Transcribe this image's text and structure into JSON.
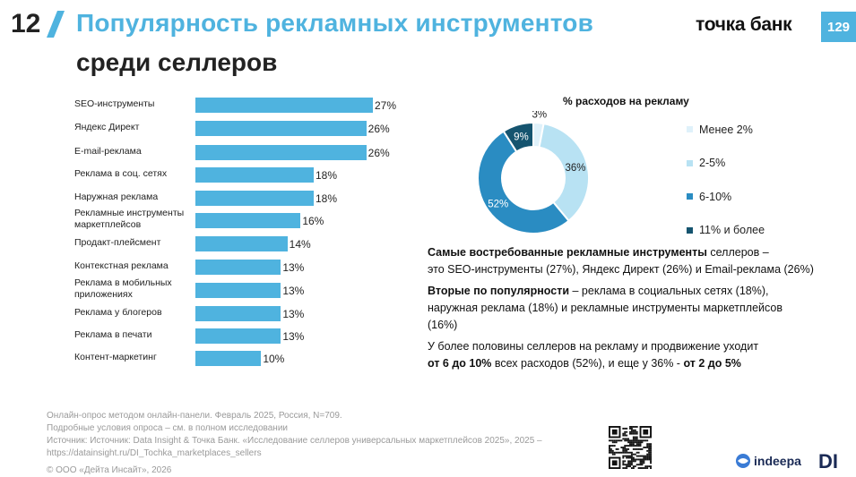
{
  "header": {
    "slide_number": "12",
    "title_line1": "Популярность рекламных инструментов",
    "title_line2": "среди селлеров",
    "brand": "точка банк",
    "page_number": "129"
  },
  "chart_data": [
    {
      "type": "bar",
      "orientation": "horizontal",
      "categories": [
        "SEO-инструменты",
        "Яндекс Директ",
        "E-mail-реклама",
        "Реклама в соц. сетях",
        "Наружная реклама",
        "Рекламные инструменты маркетплейсов",
        "Продакт-плейсмент",
        "Контекстная реклама",
        "Реклама в мобильных приложениях",
        "Реклама у блогеров",
        "Реклама в печати",
        "Контент-маркетинг"
      ],
      "values": [
        27,
        26,
        26,
        18,
        18,
        16,
        14,
        13,
        13,
        13,
        13,
        10
      ],
      "value_labels": [
        "27%",
        "26%",
        "26%",
        "18%",
        "18%",
        "16%",
        "14%",
        "13%",
        "13%",
        "13%",
        "13%",
        "10%"
      ],
      "color": "#4fb3df",
      "xlim": [
        0,
        27
      ]
    },
    {
      "type": "pie",
      "title": "% расходов на рекламу",
      "variant": "donut",
      "labels": [
        "Менее 2%",
        "2-5%",
        "6-10%",
        "11% и более"
      ],
      "values": [
        3,
        36,
        52,
        9
      ],
      "value_labels": [
        "3%",
        "36%",
        "52%",
        "9%"
      ],
      "colors": [
        "#dff1fa",
        "#b8e2f3",
        "#2a8cc2",
        "#15546f"
      ],
      "legend_position": "right"
    }
  ],
  "text": {
    "p1_bold": "Самые востребованные рекламные инструменты",
    "p1_rest": " селлеров –",
    "p1_line2": "это SEO-инструменты (27%), Яндекс Директ (26%) и Email-реклама (26%)",
    "p2_bold": "Вторые по популярности",
    "p2_rest": " – реклама в социальных сетях (18%),",
    "p2_line2": "наружная реклама (18%) и рекламные инструменты маркетплейсов",
    "p2_line3": "(16%)",
    "p3_line1": "У более половины селлеров на рекламу и продвижение уходит",
    "p3_bold1": "от 6 до 10%",
    "p3_mid": " всех расходов (52%), и еще у 36% - ",
    "p3_bold2": "от 2 до 5%"
  },
  "footer": {
    "line1": "Онлайн-опрос методом онлайн-панели. Февраль 2025, Россия, N=709.",
    "line2": "Подробные условия опроса – см. в полном исследовании",
    "line3": "Источник: Источник: Data Insight & Точка Банк. «Исследование селлеров универсальных маркетплейсов 2025», 2025 –",
    "line4": "https://datainsight.ru/DI_Tochka_marketplaces_sellers",
    "line5": "© ООО «Дейта Инсайт», 2026"
  },
  "logos": {
    "indeepa": "indeepa",
    "di": "DI"
  }
}
